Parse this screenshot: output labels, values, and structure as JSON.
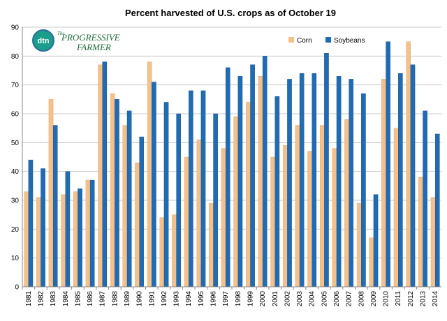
{
  "chart_data": {
    "type": "bar",
    "title": "Percent harvested of U.S. crops as of October 19",
    "categories": [
      "1981",
      "1982",
      "1983",
      "1984",
      "1985",
      "1986",
      "1987",
      "1988",
      "1989",
      "1990",
      "1991",
      "1992",
      "1993",
      "1994",
      "1995",
      "1996",
      "1997",
      "1998",
      "1999",
      "2000",
      "2001",
      "2002",
      "2003",
      "2004",
      "2005",
      "2006",
      "2007",
      "2008",
      "2009",
      "2010",
      "2011",
      "2012",
      "2013",
      "2014"
    ],
    "series": [
      {
        "name": "Corn",
        "color": "#f5c08a",
        "values": [
          33,
          31,
          65,
          32,
          33,
          37,
          77,
          67,
          56,
          43,
          78,
          24,
          25,
          45,
          51,
          29,
          48,
          59,
          64,
          73,
          45,
          49,
          56,
          47,
          56,
          48,
          58,
          29,
          17,
          72,
          55,
          85,
          38,
          31
        ]
      },
      {
        "name": "Soybeans",
        "color": "#1f6cb5",
        "values": [
          44,
          41,
          56,
          40,
          34,
          37,
          78,
          65,
          61,
          52,
          71,
          64,
          60,
          68,
          68,
          60,
          76,
          73,
          77,
          80,
          66,
          72,
          74,
          74,
          81,
          73,
          72,
          67,
          32,
          85,
          74,
          77,
          61,
          53
        ]
      }
    ],
    "ylim": [
      0,
      90
    ],
    "yticks": [
      0,
      10,
      20,
      30,
      40,
      50,
      60,
      70,
      80,
      90
    ],
    "grid": true,
    "legend": "top-right",
    "xlabel": "",
    "ylabel": ""
  },
  "logo": {
    "short": "dtn",
    "name_line1": "PROGRESSIVE",
    "name_line2": "FARMER",
    "prefix": "The"
  }
}
